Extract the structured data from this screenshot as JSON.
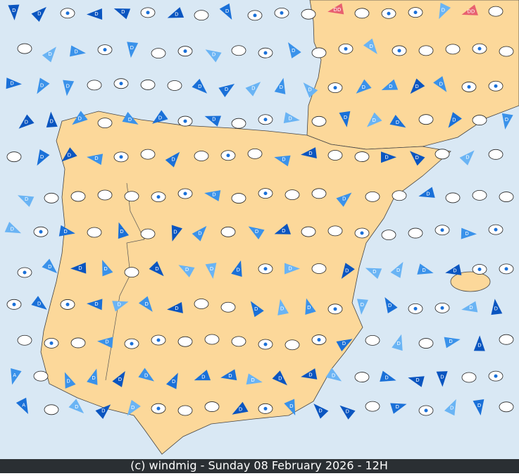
{
  "footer": "(c) windmig - Sunday 08 February 2026 - 12H",
  "labels": [
    "D",
    "DD",
    "A"
  ]
}
